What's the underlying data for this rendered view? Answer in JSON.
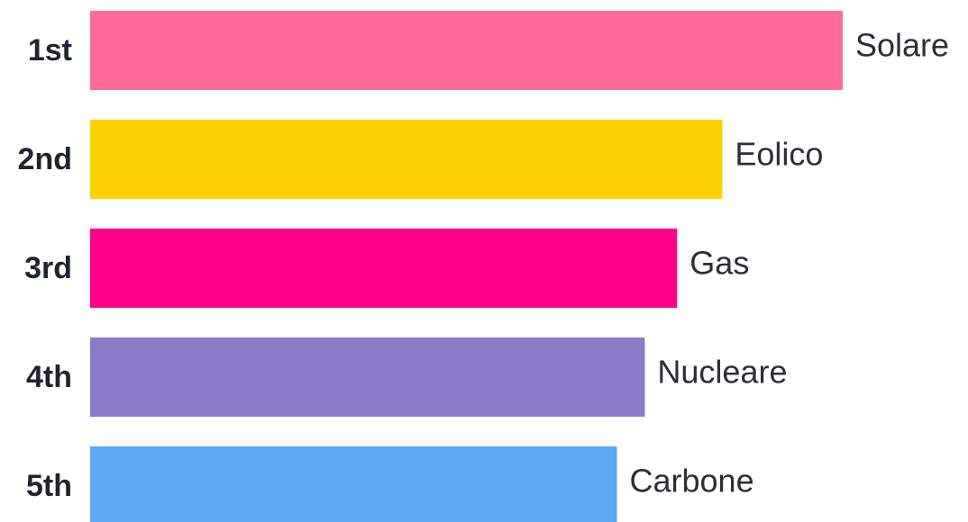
{
  "chart_data": {
    "type": "bar",
    "orientation": "horizontal",
    "ranks": [
      "1st",
      "2nd",
      "3rd",
      "4th",
      "5th"
    ],
    "categories": [
      "Solare",
      "Eolico",
      "Gas",
      "Nucleare",
      "Carbone"
    ],
    "values": [
      100,
      84,
      78,
      73.7,
      70
    ],
    "colors": [
      "#FF6B99",
      "#FFD100",
      "#FF008A",
      "#8A7BC8",
      "#5EA8F6"
    ],
    "title": "",
    "xlabel": "",
    "ylabel": "",
    "xlim": [
      0,
      100
    ],
    "grid": false,
    "legend": "none"
  }
}
